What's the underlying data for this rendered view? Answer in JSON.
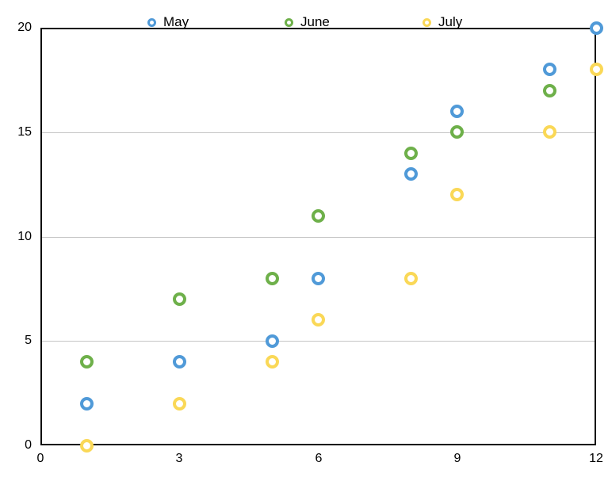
{
  "chart_data": {
    "type": "scatter",
    "title": "",
    "xlabel": "",
    "ylabel": "",
    "xlim": [
      0,
      12
    ],
    "ylim": [
      0,
      20
    ],
    "x_ticks": [
      0,
      3,
      6,
      9,
      12
    ],
    "y_ticks": [
      0,
      5,
      10,
      15,
      20
    ],
    "gridlines_y": [
      5,
      10,
      15
    ],
    "grid": "horizontal-only",
    "legend_position": "top",
    "marker_style": "hollow-circle",
    "series": [
      {
        "name": "May",
        "color": "#509AD8",
        "points": [
          [
            1,
            2
          ],
          [
            3,
            4
          ],
          [
            5,
            5
          ],
          [
            6,
            8
          ],
          [
            8,
            13
          ],
          [
            9,
            16
          ],
          [
            11,
            18
          ],
          [
            12,
            20
          ]
        ]
      },
      {
        "name": "June",
        "color": "#6EB04A",
        "points": [
          [
            1,
            4
          ],
          [
            3,
            7
          ],
          [
            5,
            8
          ],
          [
            6,
            11
          ],
          [
            8,
            14
          ],
          [
            9,
            15
          ],
          [
            11,
            17
          ]
        ]
      },
      {
        "name": "July",
        "color": "#FAD857",
        "points": [
          [
            1,
            0
          ],
          [
            3,
            2
          ],
          [
            5,
            4
          ],
          [
            6,
            6
          ],
          [
            8,
            8
          ],
          [
            9,
            12
          ],
          [
            11,
            15
          ],
          [
            12,
            18
          ]
        ]
      }
    ],
    "colors": {
      "axis_border": "#0a0a0a",
      "gridline": "#c4c4c4",
      "background": "#ffffff",
      "text": "#000000"
    }
  }
}
